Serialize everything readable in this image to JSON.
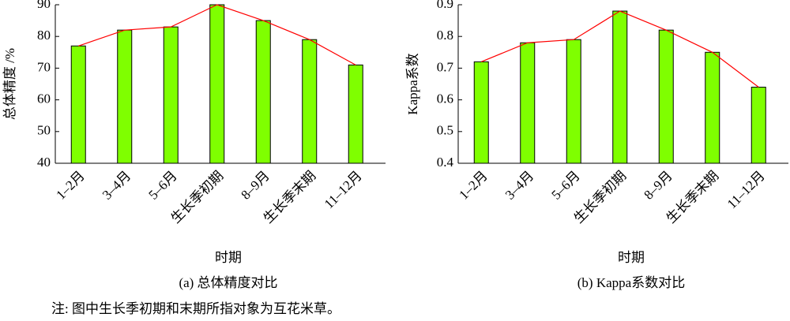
{
  "chart_data": [
    {
      "type": "bar",
      "title": "(a) 总体精度对比",
      "xlabel": "时期",
      "ylabel": "总体精度 /%",
      "categories": [
        "1–2月",
        "3–4月",
        "5–6月",
        "生长季初期",
        "8–9月",
        "生长季末期",
        "11–12月"
      ],
      "values": [
        77,
        82,
        83,
        90,
        85,
        79,
        71
      ],
      "color": "#7fff00",
      "line_color": "#ff0000",
      "ylim": [
        40,
        90
      ],
      "yticks": [
        40,
        50,
        60,
        70,
        80,
        90
      ]
    },
    {
      "type": "bar",
      "title": "(b) Kappa系数对比",
      "xlabel": "时期",
      "ylabel": "Kappa系数",
      "categories": [
        "1–2月",
        "3–4月",
        "5–6月",
        "生长季初期",
        "8–9月",
        "生长季末期",
        "11–12月"
      ],
      "values": [
        0.72,
        0.78,
        0.79,
        0.88,
        0.82,
        0.75,
        0.64
      ],
      "color": "#7fff00",
      "line_color": "#ff0000",
      "ylim": [
        0.4,
        0.9
      ],
      "yticks": [
        0.4,
        0.5,
        0.6,
        0.7,
        0.8,
        0.9
      ]
    }
  ],
  "note": "注: 图中生长季初期和末期所指对象为互花米草。"
}
